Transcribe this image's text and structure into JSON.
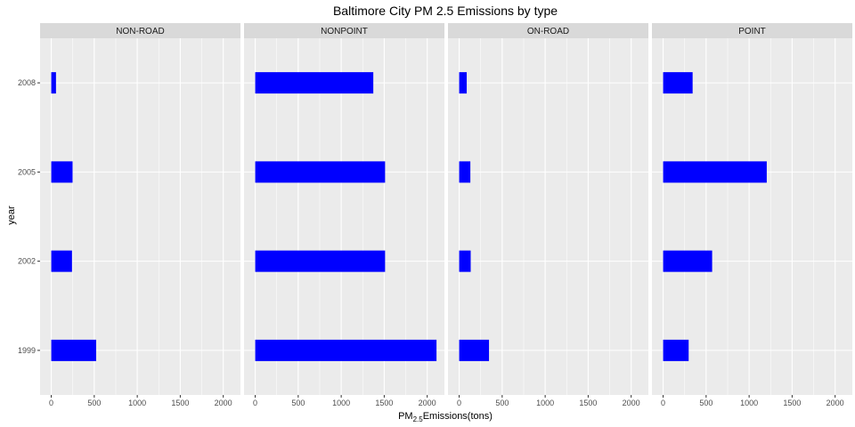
{
  "chart_data": {
    "type": "bar",
    "orientation": "horizontal",
    "facet_layout": "1 row, 4 columns",
    "title": "Baltimore City PM 2.5 Emissions by type",
    "xlabel": {
      "base": "PM",
      "subscript": "2.5",
      "suffix": "Emissions(tons)"
    },
    "ylabel": "year",
    "xlim": [
      -130,
      2200
    ],
    "x_ticks": [
      0,
      500,
      1000,
      1500,
      2000
    ],
    "x_tick_labels": [
      "0",
      "500",
      "1000",
      "1500",
      "2000"
    ],
    "categories": [
      "1999",
      "2002",
      "2005",
      "2008"
    ],
    "bar_color": "#0000ff",
    "panel_background": "#ebebeb",
    "strip_background": "#d9d9d9",
    "grid": true,
    "legend": "none",
    "facets": [
      {
        "name": "NON-ROAD",
        "values": [
          522,
          241,
          248,
          55
        ]
      },
      {
        "name": "NONPOINT",
        "values": [
          2108,
          1510,
          1510,
          1373
        ]
      },
      {
        "name": "ON-ROAD",
        "values": [
          347,
          134,
          130,
          88
        ]
      },
      {
        "name": "POINT",
        "values": [
          297,
          570,
          1205,
          343
        ]
      }
    ]
  }
}
